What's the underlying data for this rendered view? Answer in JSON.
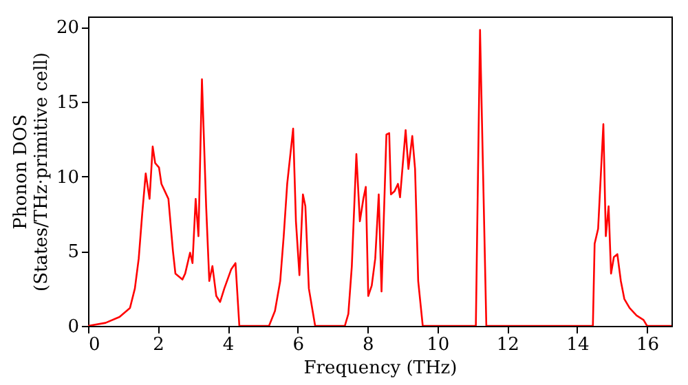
{
  "chart_data": {
    "type": "line",
    "xlabel": "Frequency (THz)",
    "ylabel": "Phonon DOS\n(States/THz·primitive cell)",
    "xlim": [
      0,
      16.7
    ],
    "ylim": [
      0,
      20.7
    ],
    "xticks": [
      0,
      2,
      4,
      6,
      8,
      10,
      12,
      14,
      16
    ],
    "yticks": [
      0,
      5,
      10,
      15,
      20
    ],
    "grid": false,
    "marker": "none",
    "line_style": "solid",
    "series": [
      {
        "color": "#ff0000",
        "x": [
          0,
          0.5,
          0.9,
          1.2,
          1.34,
          1.45,
          1.55,
          1.65,
          1.76,
          1.85,
          1.92,
          2.03,
          2.1,
          2.2,
          2.3,
          2.43,
          2.5,
          2.7,
          2.78,
          2.92,
          2.99,
          3.08,
          3.16,
          3.26,
          3.38,
          3.47,
          3.56,
          3.67,
          3.78,
          3.9,
          4.1,
          4.22,
          4.33,
          5.18,
          5.35,
          5.5,
          5.6,
          5.7,
          5.87,
          5.95,
          6.05,
          6.15,
          6.22,
          6.32,
          6.5,
          7.35,
          7.45,
          7.55,
          7.68,
          7.78,
          7.88,
          7.95,
          8.02,
          8.12,
          8.22,
          8.32,
          8.4,
          8.54,
          8.62,
          8.67,
          8.77,
          8.87,
          8.93,
          9.09,
          9.17,
          9.28,
          9.36,
          9.45,
          9.58,
          11.1,
          11.22,
          11.4,
          14.45,
          14.5,
          14.6,
          14.75,
          14.82,
          14.9,
          14.97,
          15.05,
          15.15,
          15.25,
          15.35,
          15.5,
          15.7,
          15.9,
          16.0,
          16.7
        ],
        "values": [
          0,
          0.2,
          0.6,
          1.2,
          2.5,
          4.5,
          7.5,
          10.2,
          8.5,
          12,
          10.9,
          10.6,
          9.5,
          9,
          8.5,
          5,
          3.5,
          3.1,
          3.5,
          4.9,
          4.2,
          8.5,
          6,
          16.5,
          8,
          3,
          4,
          2,
          1.6,
          2.5,
          3.8,
          4.2,
          0,
          0,
          1,
          3,
          6,
          9.5,
          13.2,
          7,
          3.4,
          8.8,
          8,
          2.5,
          0,
          0,
          0.8,
          4,
          11.5,
          7,
          8.5,
          9.3,
          2,
          2.7,
          4.5,
          8.8,
          2.3,
          12.8,
          12.9,
          8.8,
          9,
          9.5,
          8.6,
          13.1,
          10.5,
          12.7,
          10.5,
          3,
          0,
          0,
          19.8,
          0,
          0,
          5.5,
          6.5,
          13.5,
          6,
          8,
          3.5,
          4.6,
          4.8,
          3,
          1.8,
          1.2,
          0.7,
          0.4,
          0,
          0
        ]
      }
    ]
  }
}
